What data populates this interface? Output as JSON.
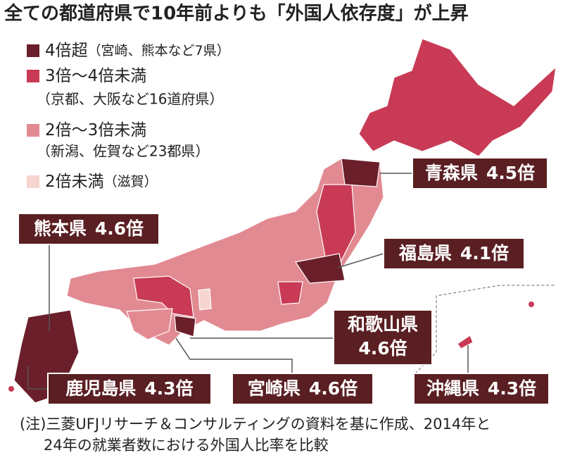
{
  "title": "全ての都道府県で10年前よりも「外国人依存度」が上昇",
  "legend": [
    {
      "label": "4倍超",
      "note": "（宮崎、熊本など7県）"
    },
    {
      "label": "3倍～4倍未満",
      "note": "（京都、大阪など16道府県）"
    },
    {
      "label": "2倍～3倍未満",
      "note": "（新潟、佐賀など23都県）"
    },
    {
      "label": "2倍未満",
      "note": "（滋賀）"
    }
  ],
  "callouts": [
    {
      "name": "青森県",
      "value": "4.5倍"
    },
    {
      "name": "福島県",
      "value": "4.1倍"
    },
    {
      "name": "和歌山県",
      "value": "4.6倍"
    },
    {
      "name": "熊本県",
      "value": "4.6倍"
    },
    {
      "name": "鹿児島県",
      "value": "4.3倍"
    },
    {
      "name": "宮崎県",
      "value": "4.6倍"
    },
    {
      "name": "沖縄県",
      "value": "4.3倍"
    }
  ],
  "note": [
    "(注)三菱UFJリサーチ＆コンサルティングの資料を基に作成、2014年と",
    "24年の就業者数における外国人比率を比較"
  ]
}
